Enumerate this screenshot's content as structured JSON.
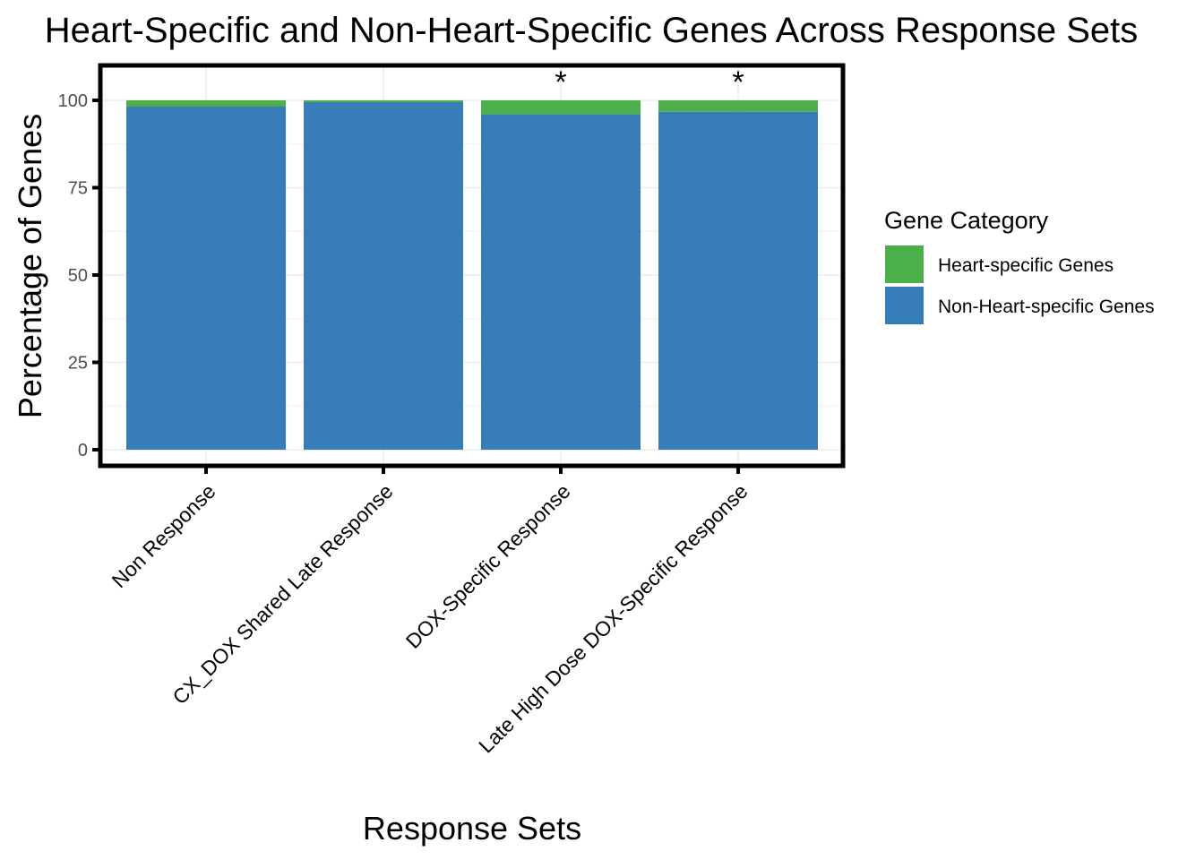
{
  "chart_data": {
    "type": "bar",
    "stacked": true,
    "title": "Heart-Specific and Non-Heart-Specific Genes Across Response Sets",
    "xlabel": "Response Sets",
    "ylabel": "Percentage of Genes",
    "ylim": [
      0,
      100
    ],
    "yticks": [
      "0",
      "25",
      "50",
      "75",
      "100"
    ],
    "categories": [
      "Non Response",
      "CX_DOX Shared Late Response",
      "DOX-Specific Response",
      "Late High Dose DOX-Specific Response"
    ],
    "series": [
      {
        "name": "Non-Heart-specific Genes",
        "color": "#377EB8",
        "values": [
          98.2,
          99.5,
          96.0,
          96.7
        ]
      },
      {
        "name": "Heart-specific Genes",
        "color": "#4DAF4A",
        "values": [
          1.8,
          0.5,
          4.0,
          3.3
        ]
      }
    ],
    "annotations": [
      "",
      "",
      "*",
      "*"
    ],
    "legend": {
      "title": "Gene Category",
      "position": "right",
      "entries": [
        {
          "label": "Heart-specific Genes",
          "color": "#4DAF4A"
        },
        {
          "label": "Non-Heart-specific Genes",
          "color": "#377EB8"
        }
      ]
    },
    "grid": true,
    "panel_border_color": "#000000"
  }
}
